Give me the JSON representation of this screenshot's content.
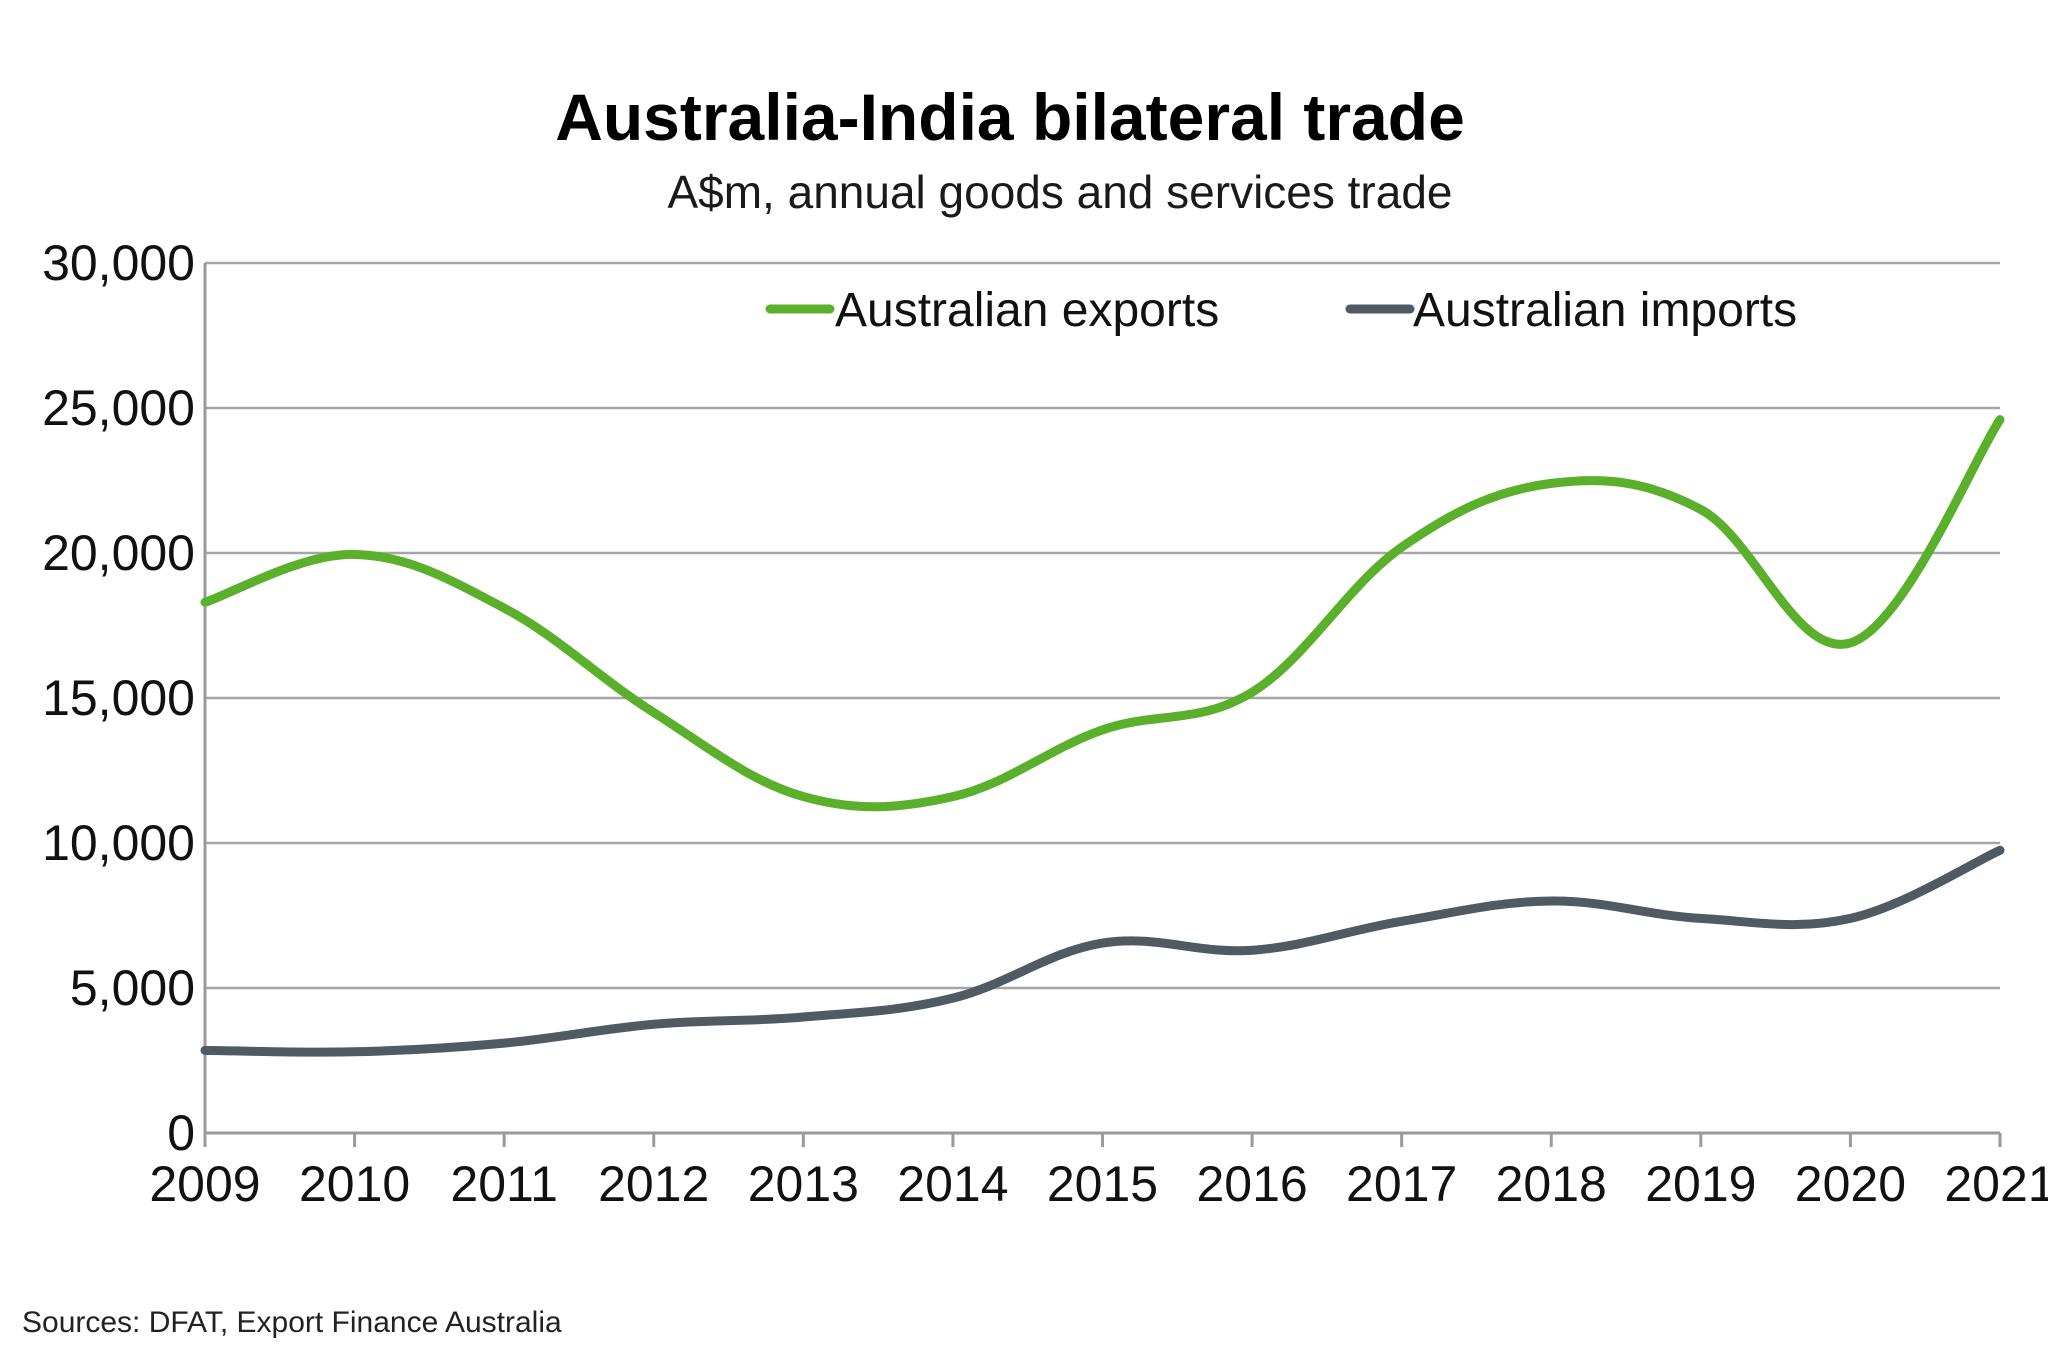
{
  "colors": {
    "exports": "#5aaf2b",
    "imports": "#505a62"
  },
  "source": "Sources: DFAT, Export Finance Australia",
  "chart_data": {
    "type": "line",
    "title": "Australia-India bilateral trade",
    "subtitle": "A$m, annual goods and services trade",
    "xlabel": "",
    "ylabel": "",
    "x": [
      2009,
      2010,
      2011,
      2012,
      2013,
      2014,
      2015,
      2016,
      2017,
      2018,
      2019,
      2020,
      2021
    ],
    "x_tick_labels": [
      "2009",
      "2010",
      "2011",
      "2012",
      "2013",
      "2014",
      "2015",
      "2016",
      "2017",
      "2018",
      "2019",
      "2020",
      "2021"
    ],
    "ylim": [
      0,
      30000
    ],
    "y_ticks": [
      0,
      5000,
      10000,
      15000,
      20000,
      25000,
      30000
    ],
    "y_tick_labels": [
      "0",
      "5,000",
      "10,000",
      "15,000",
      "20,000",
      "25,000",
      "30,000"
    ],
    "grid": true,
    "legend_position": "top-right",
    "series": [
      {
        "name": "Australian exports",
        "values": [
          18300,
          19950,
          18100,
          14500,
          11600,
          11600,
          13900,
          15200,
          20200,
          22400,
          21500,
          16900,
          24600
        ]
      },
      {
        "name": "Australian imports",
        "values": [
          2850,
          2800,
          3100,
          3750,
          4000,
          4650,
          6550,
          6300,
          7300,
          8000,
          7400,
          7400,
          9750
        ]
      }
    ]
  }
}
